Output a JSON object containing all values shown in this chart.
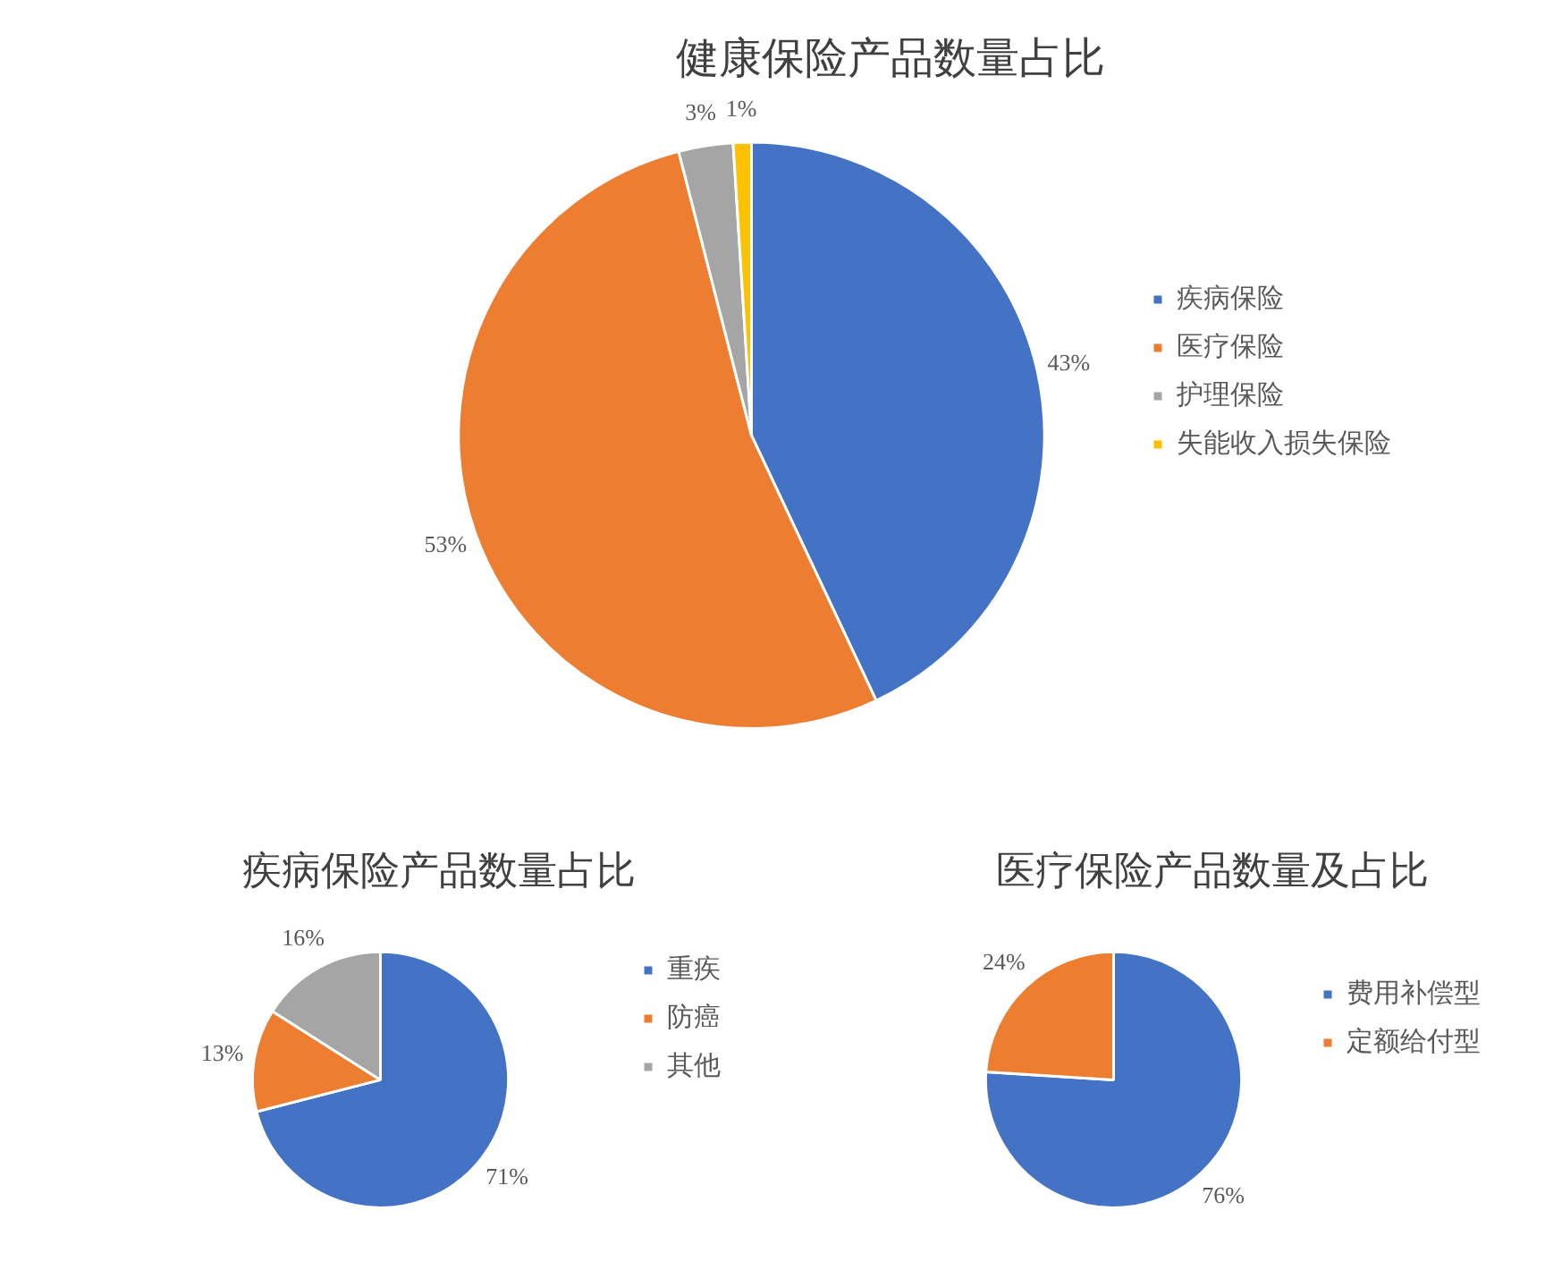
{
  "chart_data": [
    {
      "type": "pie",
      "title": "健康保险产品数量占比",
      "categories": [
        "疾病保险",
        "医疗保险",
        "护理保险",
        "失能收入损失保险"
      ],
      "values": [
        43,
        53,
        3,
        1
      ],
      "colors": [
        "#4472c4",
        "#ed7d31",
        "#a5a5a5",
        "#ffc000"
      ],
      "value_labels": [
        "43%",
        "53%",
        "3%",
        "1%"
      ],
      "legend": "right"
    },
    {
      "type": "pie",
      "title": "疾病保险产品数量占比",
      "categories": [
        "重疾",
        "防癌",
        "其他"
      ],
      "values": [
        71,
        13,
        16
      ],
      "colors": [
        "#4472c4",
        "#ed7d31",
        "#a5a5a5"
      ],
      "value_labels": [
        "71%",
        "13%",
        "16%"
      ],
      "legend": "right"
    },
    {
      "type": "pie",
      "title": "医疗保险产品数量及占比",
      "categories": [
        "费用补偿型",
        "定额给付型"
      ],
      "values": [
        76,
        24
      ],
      "colors": [
        "#4472c4",
        "#ed7d31"
      ],
      "value_labels": [
        "76%",
        "24%"
      ],
      "legend": "right"
    }
  ]
}
